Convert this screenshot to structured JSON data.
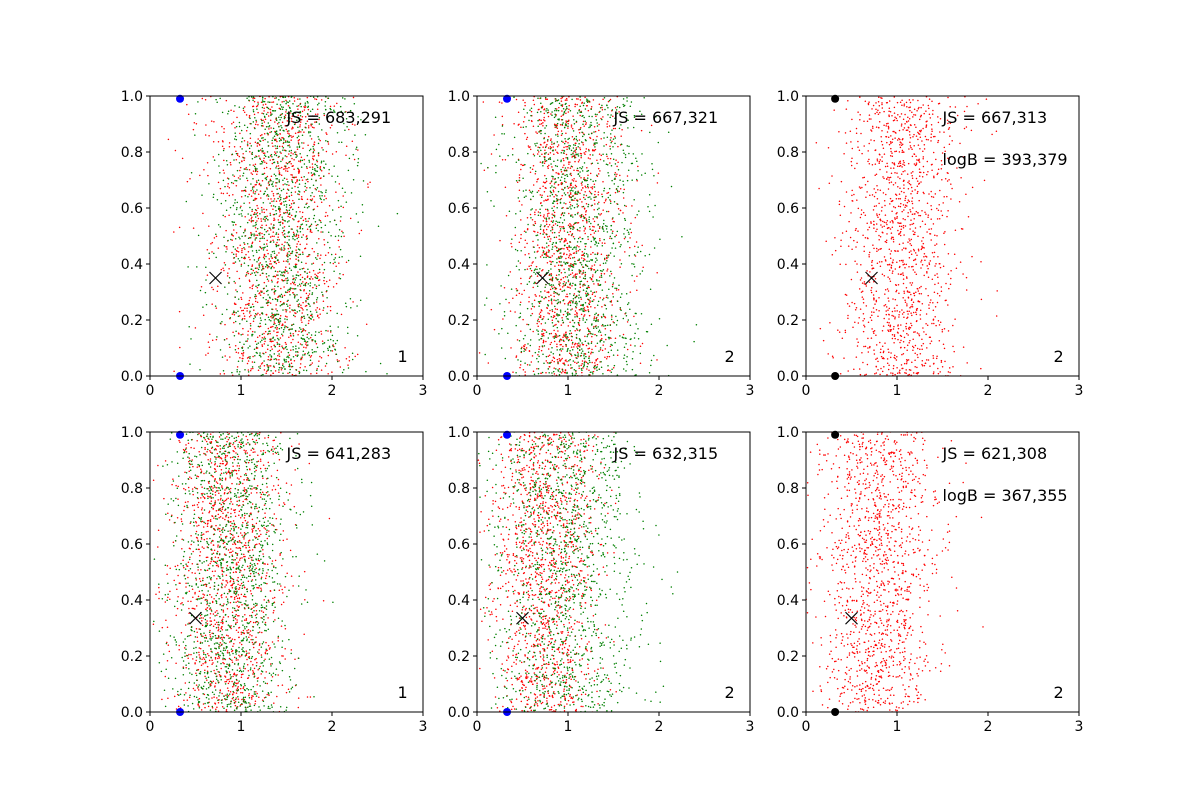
{
  "chart_data": [
    {
      "type": "scatter",
      "xlim": [
        0,
        3
      ],
      "ylim": [
        0,
        1
      ],
      "xticks": [
        "0",
        "1",
        "2",
        "3"
      ],
      "yticks": [
        "0.0",
        "0.2",
        "0.4",
        "0.6",
        "0.8",
        "1.0"
      ],
      "annotations": [
        "JS = 683,291"
      ],
      "corner_label": "1",
      "series": [
        {
          "color": "#ff0000"
        },
        {
          "color": "#008000"
        }
      ],
      "clouds": [
        {
          "color": "#ff0000",
          "center": 1.4,
          "spread": 0.36
        },
        {
          "color": "#008000",
          "center": 1.45,
          "spread": 0.36
        }
      ],
      "marker_x": {
        "x": 0.72,
        "y": 0.35
      },
      "endpoints": {
        "x": 0.33,
        "y": [
          0,
          0.99
        ],
        "color": "#0000ff"
      }
    },
    {
      "type": "scatter",
      "xlim": [
        0,
        3
      ],
      "ylim": [
        0,
        1
      ],
      "xticks": [
        "0",
        "1",
        "2",
        "3"
      ],
      "yticks": [
        "0.0",
        "0.2",
        "0.4",
        "0.6",
        "0.8",
        "1.0"
      ],
      "annotations": [
        "JS = 667,321"
      ],
      "corner_label": "2",
      "series": [
        {
          "color": "#ff0000"
        },
        {
          "color": "#008000"
        }
      ],
      "clouds": [
        {
          "color": "#ff0000",
          "center": 1.0,
          "spread": 0.3
        },
        {
          "color": "#008000",
          "center": 1.1,
          "spread": 0.38
        }
      ],
      "marker_x": {
        "x": 0.72,
        "y": 0.35
      },
      "endpoints": {
        "x": 0.33,
        "y": [
          0,
          0.99
        ],
        "color": "#0000ff"
      }
    },
    {
      "type": "scatter",
      "xlim": [
        0,
        3
      ],
      "ylim": [
        0,
        1
      ],
      "xticks": [
        "0",
        "1",
        "2",
        "3"
      ],
      "yticks": [
        "0.0",
        "0.2",
        "0.4",
        "0.6",
        "0.8",
        "1.0"
      ],
      "annotations": [
        "JS = 667,313",
        "logB = 393,379"
      ],
      "corner_label": "2",
      "series": [
        {
          "color": "#ff0000"
        }
      ],
      "clouds": [
        {
          "color": "#ff0000",
          "center": 1.05,
          "spread": 0.32
        }
      ],
      "marker_x": {
        "x": 0.72,
        "y": 0.35
      },
      "endpoints": {
        "x": 0.32,
        "y": [
          0,
          0.99
        ],
        "color": "#000000"
      }
    },
    {
      "type": "scatter",
      "xlim": [
        0,
        3
      ],
      "ylim": [
        0,
        1
      ],
      "xticks": [
        "0",
        "1",
        "2",
        "3"
      ],
      "yticks": [
        "0.0",
        "0.2",
        "0.4",
        "0.6",
        "0.8",
        "1.0"
      ],
      "annotations": [
        "JS = 641,283"
      ],
      "corner_label": "1",
      "series": [
        {
          "color": "#ff0000"
        },
        {
          "color": "#008000"
        }
      ],
      "clouds": [
        {
          "color": "#ff0000",
          "center": 0.85,
          "spread": 0.32
        },
        {
          "color": "#008000",
          "center": 0.9,
          "spread": 0.34
        }
      ],
      "marker_x": {
        "x": 0.5,
        "y": 0.335
      },
      "endpoints": {
        "x": 0.33,
        "y": [
          0,
          0.99
        ],
        "color": "#0000ff"
      }
    },
    {
      "type": "scatter",
      "xlim": [
        0,
        3
      ],
      "ylim": [
        0,
        1
      ],
      "xticks": [
        "0",
        "1",
        "2",
        "3"
      ],
      "yticks": [
        "0.0",
        "0.2",
        "0.4",
        "0.6",
        "0.8",
        "1.0"
      ],
      "annotations": [
        "JS = 632,315"
      ],
      "corner_label": "2",
      "series": [
        {
          "color": "#ff0000"
        },
        {
          "color": "#008000"
        }
      ],
      "clouds": [
        {
          "color": "#ff0000",
          "center": 0.75,
          "spread": 0.28
        },
        {
          "color": "#008000",
          "center": 0.95,
          "spread": 0.4
        }
      ],
      "marker_x": {
        "x": 0.5,
        "y": 0.335
      },
      "endpoints": {
        "x": 0.33,
        "y": [
          0,
          0.99
        ],
        "color": "#0000ff"
      }
    },
    {
      "type": "scatter",
      "xlim": [
        0,
        3
      ],
      "ylim": [
        0,
        1
      ],
      "xticks": [
        "0",
        "1",
        "2",
        "3"
      ],
      "yticks": [
        "0.0",
        "0.2",
        "0.4",
        "0.6",
        "0.8",
        "1.0"
      ],
      "annotations": [
        "JS = 621,308",
        "logB = 367,355"
      ],
      "corner_label": "2",
      "series": [
        {
          "color": "#ff0000"
        }
      ],
      "clouds": [
        {
          "color": "#ff0000",
          "center": 0.8,
          "spread": 0.32
        }
      ],
      "marker_x": {
        "x": 0.5,
        "y": 0.335
      },
      "endpoints": {
        "x": 0.32,
        "y": [
          0,
          0.99
        ],
        "color": "#000000"
      }
    }
  ]
}
